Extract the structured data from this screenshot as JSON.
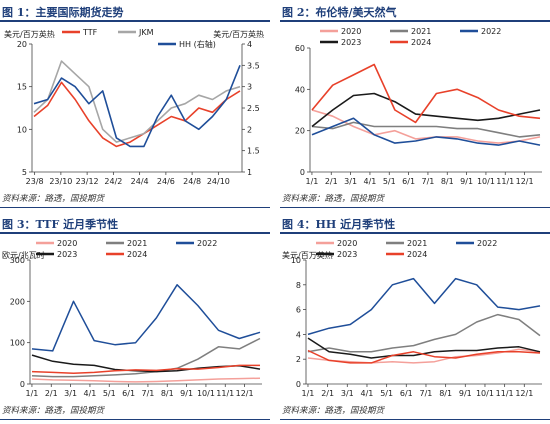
{
  "panels": [
    {
      "title": "图 1：主要国际期货走势",
      "source": "资料来源：路透，国投期货"
    },
    {
      "title": "图 2：布伦特/美天然气",
      "source": "资料来源：路透，国投期货"
    },
    {
      "title": "图 3：TTF 近月季节性",
      "source": "资料来源：路透，国投期货"
    },
    {
      "title": "图 4：HH 近月季节性",
      "source": "资料来源：路透，国投期货"
    }
  ],
  "colors": {
    "rule": "#1f3f7a",
    "red": "#e8412a",
    "grey": "#a6a6a6",
    "blue": "#1f4e99",
    "pink": "#f4a09a",
    "darkgrey": "#7f7f7f",
    "navy": "#102a6e",
    "black": "#1a1a1a"
  },
  "chart_data": [
    {
      "type": "line",
      "ylabel_left": "美元/百万英热",
      "ylabel_right": "美元/百万英热",
      "ylim": [
        5,
        20
      ],
      "yticks": [
        5,
        10,
        15,
        20
      ],
      "y2lim": [
        1,
        4
      ],
      "y2ticks": [
        "1",
        "1.5",
        "2",
        "2.5",
        "3",
        "3.5",
        "4"
      ],
      "xticks": [
        "23/8",
        "23/10",
        "23/12",
        "24/2",
        "24/4",
        "24/6",
        "24/8",
        "24/10"
      ],
      "x": [
        "23/8",
        "23/9",
        "23/10",
        "23/11",
        "23/12",
        "24/1",
        "24/2",
        "24/3",
        "24/4",
        "24/5",
        "24/6",
        "24/7",
        "24/8",
        "24/9",
        "24/10",
        "24/11"
      ],
      "series": [
        {
          "name": "TTF",
          "color": "#e8412a",
          "axis": "left",
          "values": [
            11.5,
            12.8,
            15.5,
            13.5,
            11.0,
            9.0,
            8.0,
            8.5,
            9.5,
            10.5,
            11.5,
            11.0,
            12.5,
            12.0,
            13.5,
            14.5
          ]
        },
        {
          "name": "JKM",
          "color": "#a6a6a6",
          "axis": "left",
          "values": [
            12.0,
            13.5,
            18.0,
            16.5,
            15.0,
            10.0,
            8.5,
            9.0,
            9.5,
            11.0,
            12.5,
            13.0,
            14.0,
            13.5,
            14.5,
            15.0
          ]
        },
        {
          "name": "HH (右轴)",
          "color": "#1f4e99",
          "axis": "right",
          "values": [
            2.6,
            2.7,
            3.2,
            3.0,
            2.6,
            2.9,
            1.8,
            1.6,
            1.6,
            2.3,
            2.8,
            2.2,
            2.0,
            2.3,
            2.7,
            3.5
          ]
        }
      ]
    },
    {
      "type": "line",
      "ylim": [
        0,
        60
      ],
      "yticks": [
        0,
        20,
        40,
        60
      ],
      "xticks": [
        "1/1",
        "2/1",
        "3/1",
        "4/1",
        "5/1",
        "6/1",
        "7/1",
        "8/1",
        "9/1",
        "10/1",
        "11/1",
        "12/1"
      ],
      "series": [
        {
          "name": "2020",
          "color": "#f4a09a",
          "values": [
            30,
            27,
            22,
            18,
            20,
            16,
            17,
            17,
            15,
            14,
            15,
            17
          ]
        },
        {
          "name": "2021",
          "color": "#7f7f7f",
          "values": [
            22,
            21,
            24,
            22,
            22,
            22,
            22,
            21,
            21,
            19,
            17,
            18
          ]
        },
        {
          "name": "2022",
          "color": "#1f4e99",
          "values": [
            18,
            22,
            26,
            18,
            14,
            15,
            17,
            16,
            14,
            13,
            15,
            13
          ]
        },
        {
          "name": "2023",
          "color": "#1a1a1a",
          "values": [
            22,
            30,
            37,
            38,
            34,
            28,
            27,
            26,
            25,
            26,
            28,
            30
          ]
        },
        {
          "name": "2024",
          "color": "#e8412a",
          "values": [
            30,
            42,
            47,
            52,
            30,
            24,
            38,
            40,
            36,
            30,
            27,
            26
          ]
        }
      ]
    },
    {
      "type": "line",
      "ylabel": "欧元/兆瓦时",
      "ylim": [
        0,
        300
      ],
      "yticks": [
        0,
        100,
        200,
        300
      ],
      "xticks": [
        "1/1",
        "2/1",
        "3/1",
        "4/1",
        "5/1",
        "6/1",
        "7/1",
        "8/1",
        "9/1",
        "10/1",
        "11/1",
        "12/1"
      ],
      "series": [
        {
          "name": "2020",
          "color": "#f4a09a",
          "values": [
            12,
            10,
            9,
            8,
            6,
            5,
            6,
            8,
            10,
            12,
            13,
            14
          ]
        },
        {
          "name": "2021",
          "color": "#7f7f7f",
          "values": [
            20,
            18,
            18,
            20,
            22,
            25,
            30,
            38,
            60,
            90,
            85,
            110
          ]
        },
        {
          "name": "2022",
          "color": "#1f4e99",
          "values": [
            85,
            80,
            200,
            105,
            95,
            100,
            160,
            240,
            190,
            130,
            110,
            125
          ]
        },
        {
          "name": "2023",
          "color": "#1a1a1a",
          "values": [
            70,
            55,
            48,
            45,
            35,
            32,
            30,
            32,
            38,
            42,
            44,
            36
          ]
        },
        {
          "name": "2024",
          "color": "#e8412a",
          "values": [
            30,
            28,
            26,
            28,
            32,
            34,
            33,
            37,
            36,
            40,
            45,
            45
          ]
        }
      ]
    },
    {
      "type": "line",
      "ylabel": "美元/百万英热",
      "ylim": [
        0,
        10
      ],
      "yticks": [
        0,
        2,
        4,
        6,
        8,
        10
      ],
      "xticks": [
        "1/1",
        "2/1",
        "3/1",
        "4/1",
        "5/1",
        "6/1",
        "7/1",
        "8/1",
        "9/1",
        "10/1",
        "11/1",
        "12/1"
      ],
      "series": [
        {
          "name": "2020",
          "color": "#f4a09a",
          "values": [
            2.1,
            1.9,
            1.8,
            1.7,
            1.8,
            1.7,
            1.8,
            2.2,
            2.3,
            2.5,
            2.8,
            2.6
          ]
        },
        {
          "name": "2021",
          "color": "#7f7f7f",
          "values": [
            2.6,
            2.9,
            2.6,
            2.6,
            2.9,
            3.1,
            3.6,
            4.0,
            5.0,
            5.6,
            5.2,
            3.9
          ]
        },
        {
          "name": "2022",
          "color": "#1f4e99",
          "values": [
            4.0,
            4.5,
            4.8,
            6.0,
            8.0,
            8.5,
            6.5,
            8.5,
            8.0,
            6.2,
            6.0,
            6.3
          ]
        },
        {
          "name": "2023",
          "color": "#1a1a1a",
          "values": [
            3.7,
            2.6,
            2.4,
            2.1,
            2.3,
            2.3,
            2.6,
            2.7,
            2.7,
            2.9,
            3.0,
            2.6
          ]
        },
        {
          "name": "2024",
          "color": "#e8412a",
          "values": [
            2.7,
            1.9,
            1.7,
            1.7,
            2.3,
            2.6,
            2.2,
            2.1,
            2.4,
            2.6,
            2.6,
            2.5
          ]
        }
      ]
    }
  ]
}
